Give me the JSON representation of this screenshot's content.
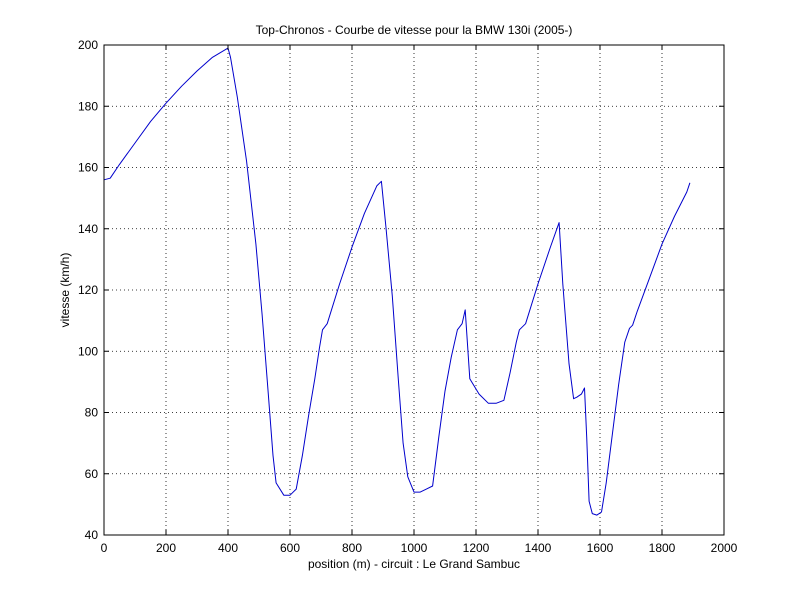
{
  "chart_data": {
    "type": "line",
    "title": "Top-Chronos - Courbe de vitesse pour la BMW 130i (2005-)",
    "xlabel": "position (m) - circuit : Le Grand Sambuc",
    "ylabel": "vitesse (km/h)",
    "xlim": [
      0,
      2000
    ],
    "ylim": [
      40,
      200
    ],
    "x_ticks": [
      0,
      200,
      400,
      600,
      800,
      1000,
      1200,
      1400,
      1600,
      1800,
      2000
    ],
    "y_ticks": [
      40,
      60,
      80,
      100,
      120,
      140,
      160,
      180,
      200
    ],
    "x_tick_labels": [
      "0",
      "200",
      "400",
      "600",
      "800",
      "1000",
      "1200",
      "1400",
      "1600",
      "1800",
      "2000"
    ],
    "y_tick_labels": [
      "40",
      "60",
      "80",
      "100",
      "120",
      "140",
      "160",
      "180",
      "200"
    ],
    "grid": true,
    "legend": "none",
    "series": [
      {
        "color": "#0000cc",
        "x": [
          0,
          20,
          50,
          100,
          150,
          200,
          250,
          300,
          350,
          400,
          408,
          430,
          460,
          490,
          510,
          530,
          545,
          555,
          580,
          600,
          620,
          640,
          660,
          680,
          695,
          705,
          720,
          760,
          800,
          840,
          880,
          895,
          910,
          930,
          950,
          965,
          980,
          1000,
          1020,
          1040,
          1060,
          1080,
          1100,
          1120,
          1140,
          1155,
          1165,
          1180,
          1210,
          1240,
          1265,
          1290,
          1310,
          1330,
          1340,
          1360,
          1400,
          1440,
          1468,
          1480,
          1500,
          1515,
          1525,
          1540,
          1550,
          1557,
          1565,
          1575,
          1590,
          1605,
          1620,
          1640,
          1660,
          1680,
          1695,
          1705,
          1720,
          1760,
          1800,
          1840,
          1880,
          1890
        ],
        "y": [
          156,
          156.5,
          161,
          168,
          175,
          181,
          186.5,
          191.5,
          196,
          199,
          196,
          183,
          162,
          135,
          112,
          86,
          66,
          57,
          53,
          53,
          55,
          66,
          79,
          91,
          101,
          107,
          109,
          122,
          134,
          145,
          154,
          155.5,
          140,
          118,
          90,
          70,
          59,
          54,
          54,
          55,
          56,
          72,
          87,
          98,
          107,
          109,
          113.5,
          91,
          86,
          83,
          83,
          84,
          93,
          103,
          107,
          109,
          122,
          134,
          142,
          122,
          96,
          84.5,
          85,
          86,
          88,
          72,
          51,
          47,
          46.5,
          47.5,
          57,
          73,
          89,
          103,
          107.5,
          108.5,
          113,
          124,
          135,
          144,
          152,
          155
        ]
      }
    ]
  }
}
